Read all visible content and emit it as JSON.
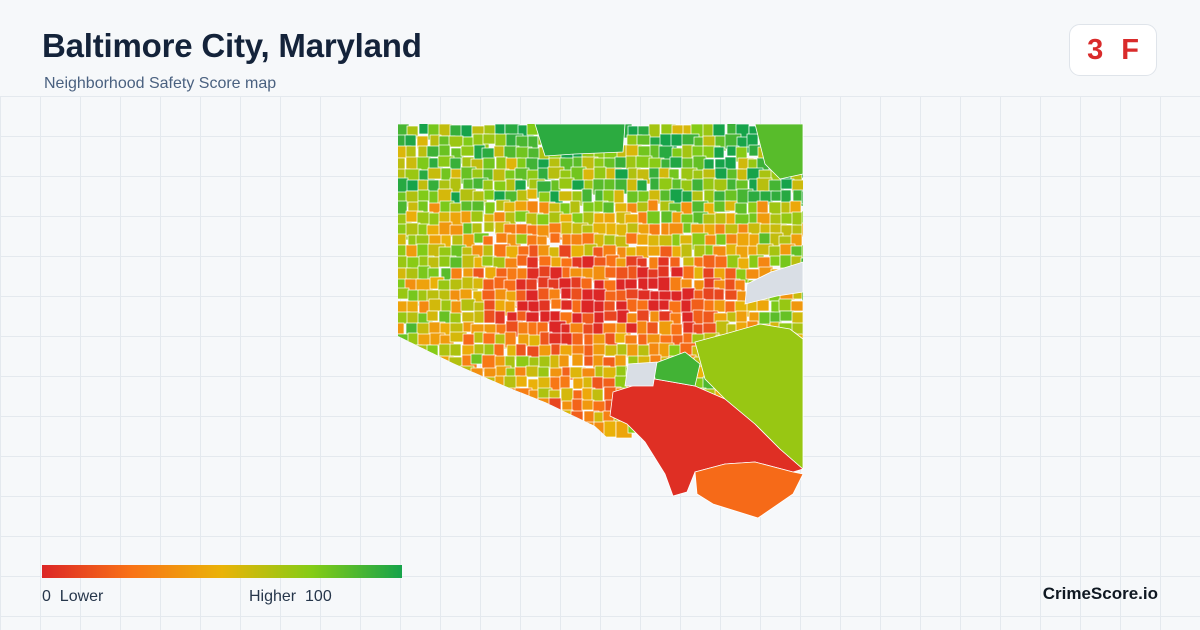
{
  "header": {
    "title": "Baltimore City, Maryland",
    "subtitle": "Neighborhood Safety Score map"
  },
  "grade": {
    "score": "3",
    "letter": "F",
    "color": "#d92b2b"
  },
  "legend": {
    "min_value": "0",
    "min_label": "Lower",
    "max_label": "Higher",
    "max_value": "100",
    "colors": [
      "#dc2626",
      "#f97316",
      "#eab308",
      "#84cc16",
      "#16a34a"
    ]
  },
  "brand": "CrimeScore.io",
  "map": {
    "no_data_color": "#d9dee5",
    "large_regions": [
      {
        "name": "south-harbor-region",
        "score": 3
      },
      {
        "name": "southeast-point-region",
        "score": 22
      },
      {
        "name": "east-industrial-region",
        "score": 70
      },
      {
        "name": "east-park-region",
        "score": 90
      },
      {
        "name": "inner-harbor-north-region",
        "score": 95
      },
      {
        "name": "northeast-corner-region",
        "score": 85
      }
    ]
  }
}
